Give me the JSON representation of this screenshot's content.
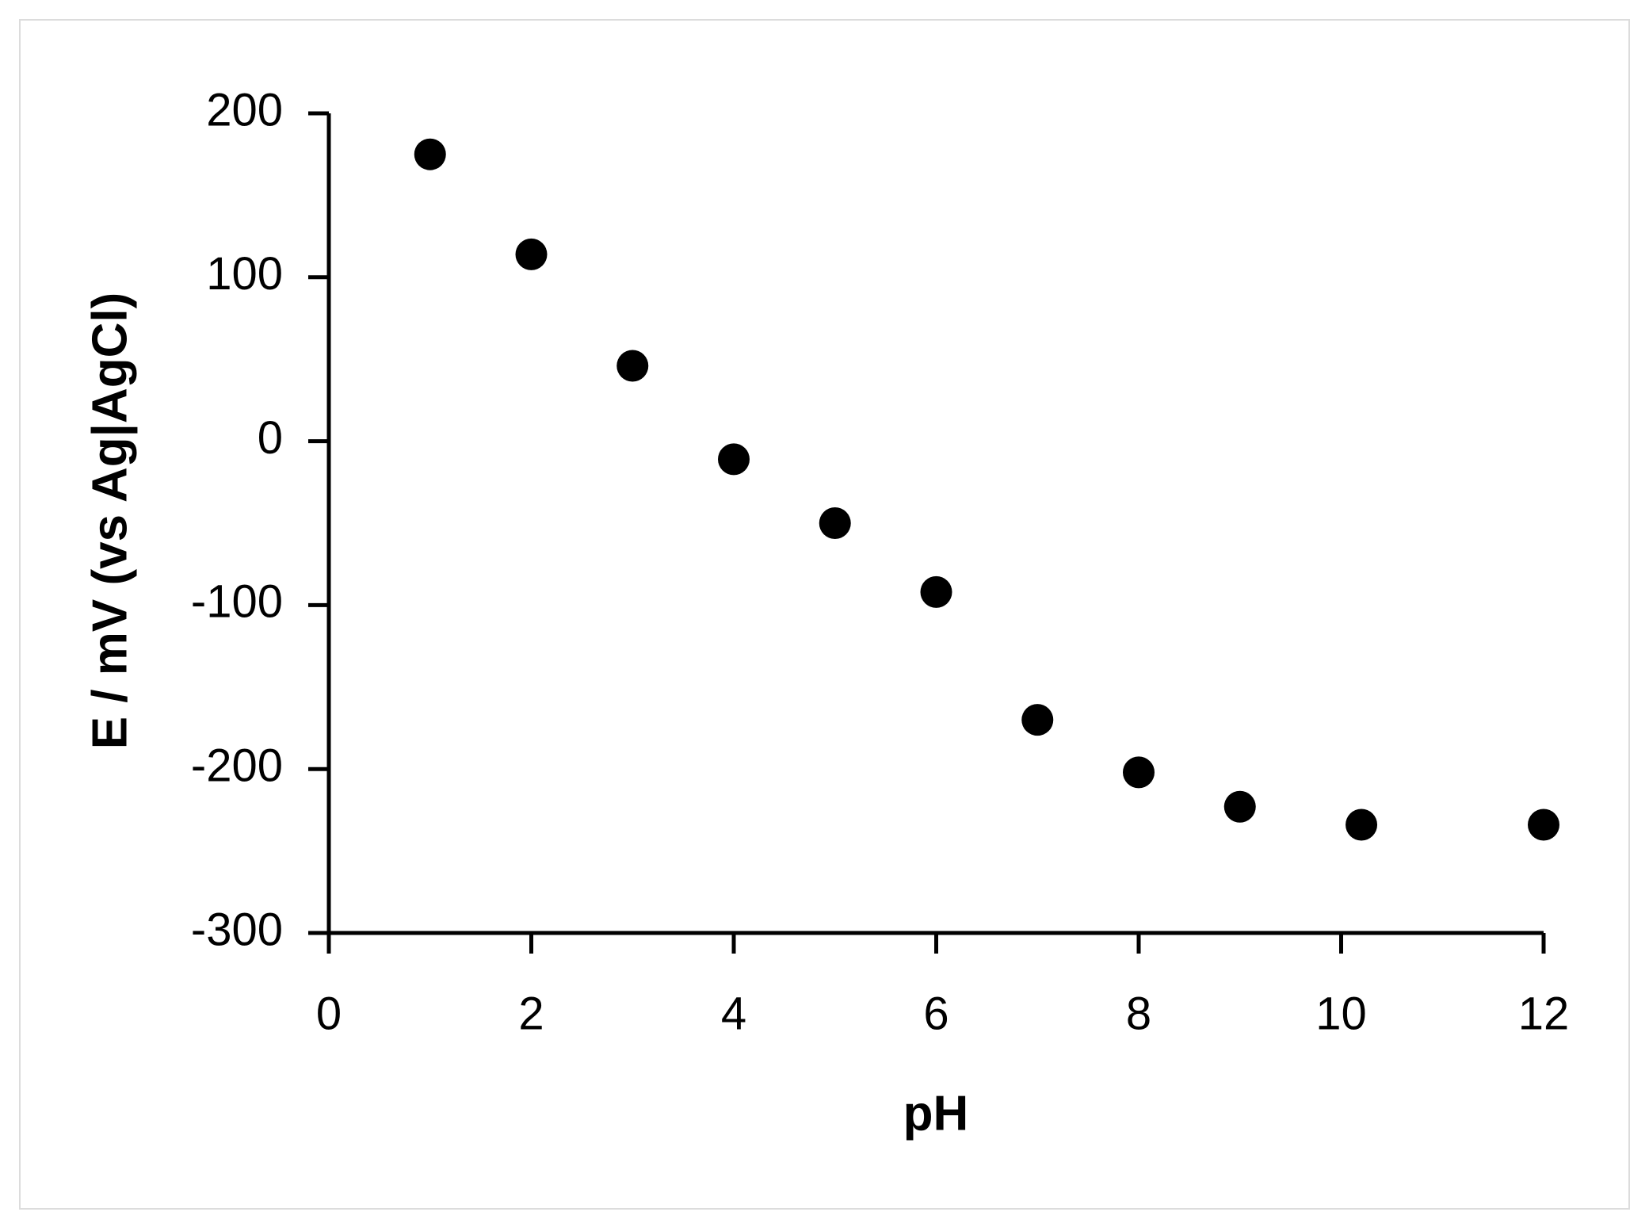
{
  "chart_data": {
    "type": "scatter",
    "x_label": "pH",
    "y_label": "E / mV (vs Ag|AgCl)",
    "series": [
      {
        "color": "#000000",
        "x": [
          1,
          2,
          3,
          4,
          5,
          6,
          7,
          8,
          9,
          10.2,
          12
        ],
        "values": [
          175,
          114,
          46,
          -11,
          -50,
          -92,
          -170,
          -202,
          -223,
          -234,
          -234
        ]
      }
    ],
    "xlim": [
      0,
      12
    ],
    "xticks": [
      0,
      2,
      4,
      6,
      8,
      10,
      12
    ],
    "ylim": [
      -300,
      200
    ],
    "yticks": [
      -300,
      -200,
      -100,
      0,
      100,
      200
    ],
    "grid": false
  }
}
